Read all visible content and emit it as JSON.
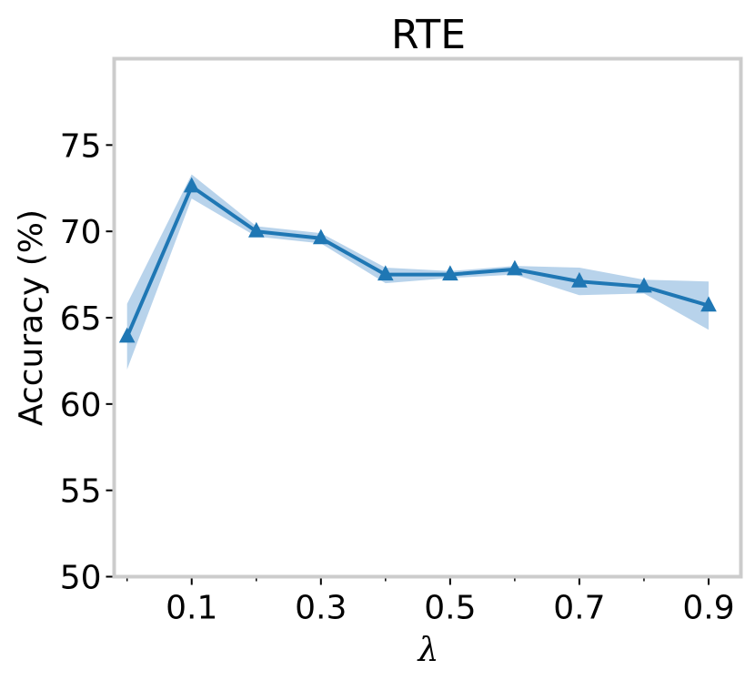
{
  "chart_data": {
    "type": "line",
    "title": "RTE",
    "xlabel": "λ",
    "ylabel": "Accuracy (%)",
    "xlim": [
      -0.02,
      0.95
    ],
    "ylim": [
      50,
      80
    ],
    "yticks": [
      50,
      55,
      60,
      65,
      70,
      75
    ],
    "xticks_major": [
      0.1,
      0.3,
      0.5,
      0.7,
      0.9
    ],
    "xticks_major_labels": [
      "0.1",
      "0.3",
      "0.5",
      "0.7",
      "0.9"
    ],
    "xticks_minor": [
      0.0,
      0.2,
      0.4,
      0.6,
      0.8
    ],
    "grid": false,
    "colors": {
      "line": "#1f77b4",
      "band": "#a6c8e6",
      "frame": "#cccccc"
    },
    "series": [
      {
        "x": [
          0.0,
          0.1,
          0.2,
          0.3,
          0.4,
          0.5,
          0.6,
          0.7,
          0.8,
          0.9
        ],
        "values": [
          63.9,
          72.6,
          70.0,
          69.6,
          67.5,
          67.5,
          67.8,
          67.1,
          66.8,
          65.7
        ],
        "lower": [
          62.0,
          71.9,
          69.7,
          69.3,
          67.0,
          67.3,
          67.5,
          66.3,
          66.4,
          64.3
        ],
        "upper": [
          65.8,
          73.3,
          70.3,
          69.9,
          67.9,
          67.7,
          68.0,
          67.9,
          67.2,
          67.1
        ],
        "marker": "triangle-up"
      }
    ]
  }
}
